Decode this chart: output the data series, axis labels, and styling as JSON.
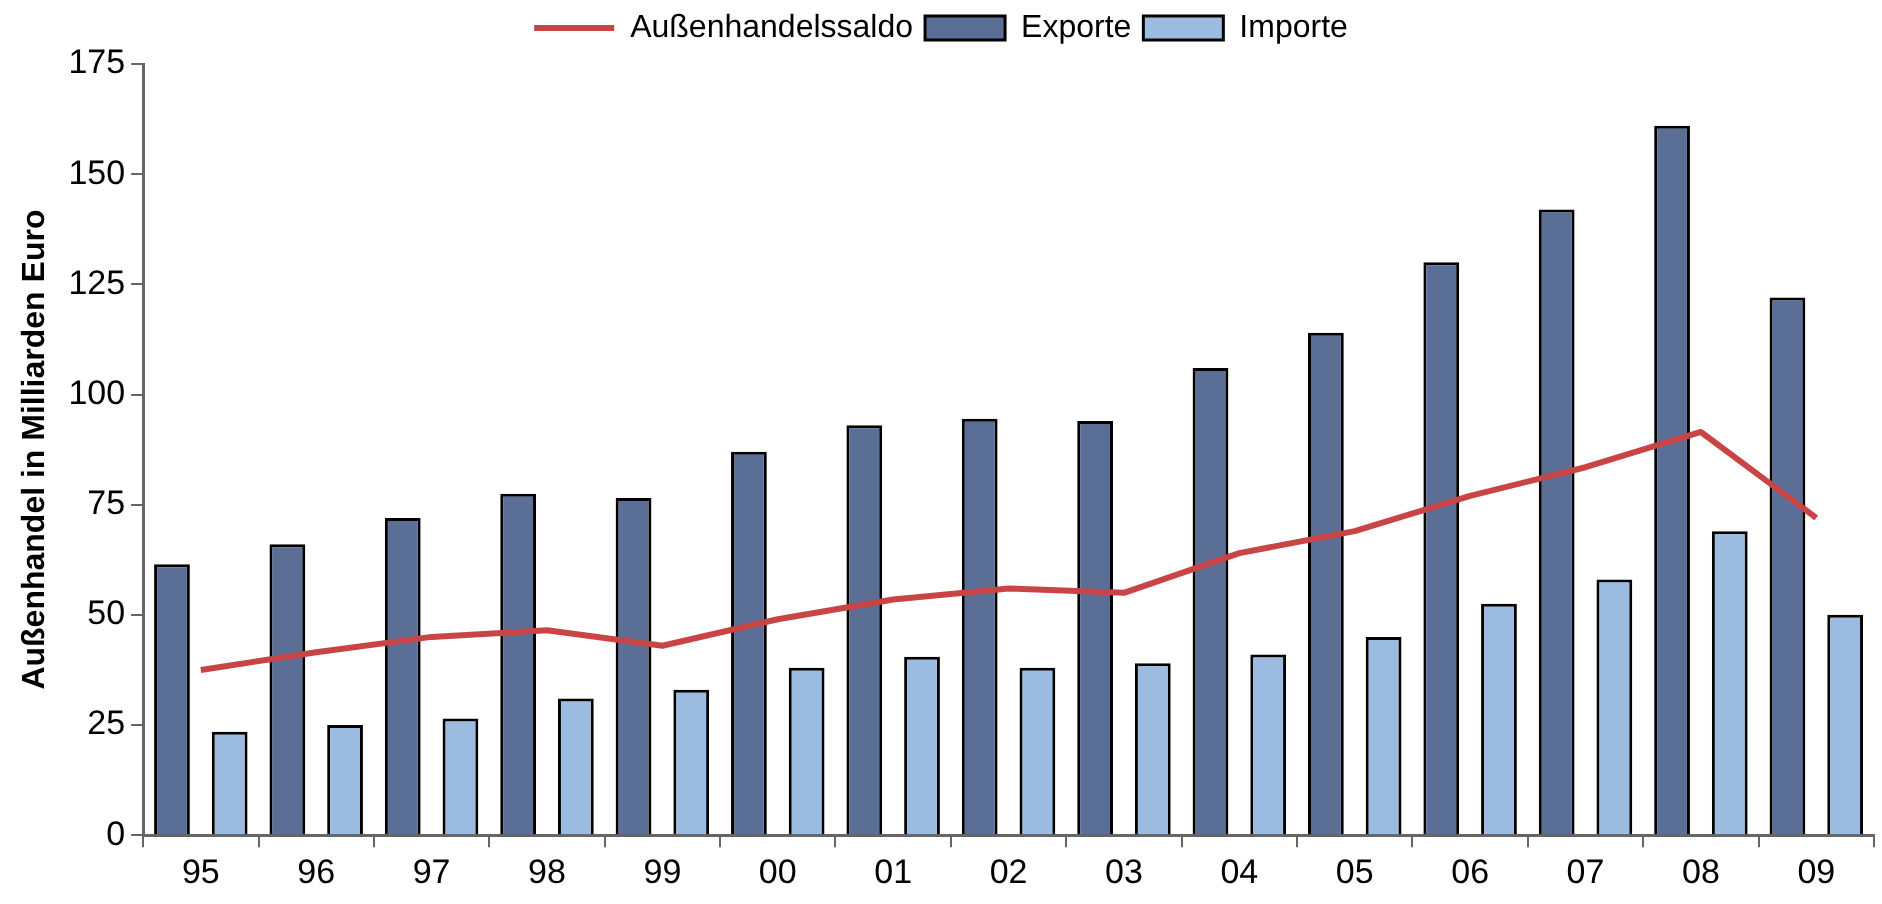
{
  "chart_data": {
    "type": "bar",
    "ylabel": "Außenhandel in Milliarden Euro",
    "categories": [
      "95",
      "96",
      "97",
      "98",
      "99",
      "00",
      "01",
      "02",
      "03",
      "04",
      "05",
      "06",
      "07",
      "08",
      "09"
    ],
    "series": [
      {
        "name": "Exporte",
        "color": "#5b6f96",
        "values": [
          61.5,
          66,
          72,
          77.5,
          76.5,
          87,
          93,
          94.5,
          94,
          106,
          114,
          130,
          142,
          161,
          122
        ]
      },
      {
        "name": "Importe",
        "color": "#9bbbe0",
        "values": [
          23.5,
          25,
          26.5,
          31,
          33,
          38,
          40.5,
          38,
          39,
          41,
          45,
          52.5,
          58,
          69,
          50
        ]
      },
      {
        "name": "Außenhandelssaldo",
        "type": "line",
        "color": "#c94444",
        "values": [
          37.5,
          41.5,
          45,
          46.5,
          43,
          49,
          53.5,
          56,
          55,
          64,
          69,
          77,
          83.5,
          91.5,
          72
        ]
      }
    ],
    "ylim": [
      0,
      175
    ],
    "yticks": [
      0,
      25,
      50,
      75,
      100,
      125,
      150,
      175
    ],
    "grid": false,
    "legend": "top",
    "marker": "none",
    "line_style": "solid"
  }
}
